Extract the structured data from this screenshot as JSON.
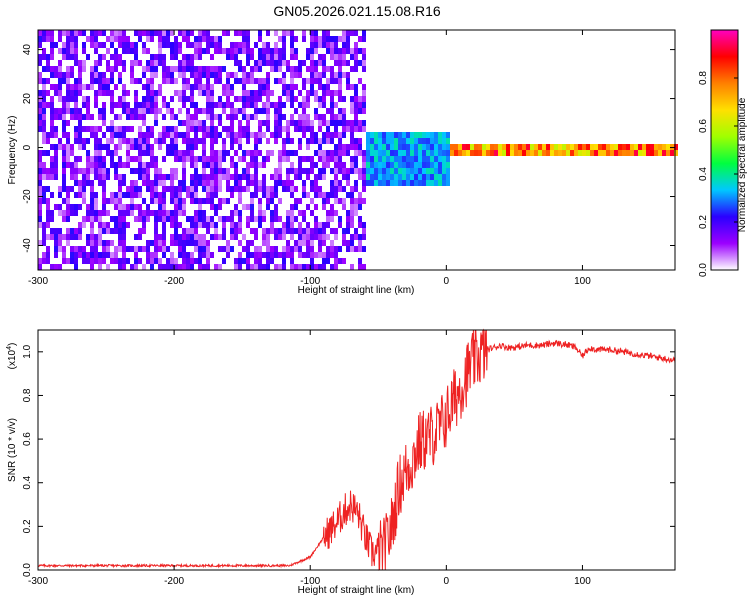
{
  "title": "GN05.2026.021.15.08.R16",
  "chart_data": [
    {
      "type": "heatmap",
      "title": "",
      "xlabel": "Height of straight line (km)",
      "ylabel": "Frequency (Hz)",
      "xlim": [
        -300,
        168
      ],
      "ylim": [
        -50,
        48
      ],
      "xticks": [
        -300,
        -200,
        -100,
        0,
        100
      ],
      "xtick_labels": [
        "-300",
        "-200",
        "-100",
        "0",
        "100"
      ],
      "yticks": [
        -40,
        -20,
        0,
        20,
        40
      ],
      "ytick_labels": [
        "-40",
        "-20",
        "0",
        "20",
        "40"
      ],
      "grid": false,
      "colorbar": {
        "label": "Normalized spectral amplitude",
        "range": [
          0,
          1
        ],
        "ticks": [
          0.0,
          0.2,
          0.4,
          0.6,
          0.8
        ],
        "tick_labels": [
          "0.0",
          "0.2",
          "0.4",
          "0.6",
          "0.8"
        ],
        "colors": [
          "#ffffff",
          "#9b00ff",
          "#2a00ff",
          "#00c8ff",
          "#00ff40",
          "#a0ff00",
          "#ffe000",
          "#ff8000",
          "#ff0000",
          "#ff00c0"
        ]
      },
      "regions": [
        {
          "x_range": [
            -300,
            -60
          ],
          "y_range": [
            -50,
            48
          ],
          "amplitude": 0.12
        },
        {
          "x_range": [
            -60,
            0
          ],
          "y_range": [
            -15,
            8
          ],
          "amplitude": 0.35
        },
        {
          "x_range": [
            0,
            168
          ],
          "y_range": [
            -1.5,
            1.5
          ],
          "amplitude": 0.85
        }
      ]
    },
    {
      "type": "line",
      "title": "",
      "xlabel": "Height of straight line (km)",
      "ylabel": "SNR (10 * v/v)",
      "y_multiplier_label": "(x10",
      "y_multiplier_exp": "4",
      "y_multiplier_close": ")",
      "xlim": [
        -300,
        168
      ],
      "ylim": [
        0,
        1.1
      ],
      "xticks": [
        -300,
        -200,
        -100,
        0,
        100
      ],
      "xtick_labels": [
        "-300",
        "-200",
        "-100",
        "0",
        "100"
      ],
      "yticks": [
        0,
        0.2,
        0.4,
        0.6,
        0.8,
        1.0
      ],
      "ytick_labels": [
        "0.0",
        "0.2",
        "0.4",
        "0.6",
        "0.8",
        "1.0"
      ],
      "grid": false,
      "series": [
        {
          "color": "#ee2222",
          "x": [
            -300,
            -250,
            -200,
            -150,
            -115,
            -100,
            -90,
            -80,
            -75,
            -70,
            -65,
            -60,
            -55,
            -50,
            -45,
            -40,
            -35,
            -30,
            -25,
            -20,
            -15,
            -10,
            -5,
            0,
            5,
            10,
            15,
            20,
            25,
            30,
            35,
            40,
            45,
            50,
            60,
            70,
            80,
            90,
            95,
            100,
            105,
            110,
            120,
            130,
            140,
            150,
            160,
            168
          ],
          "y": [
            0.02,
            0.02,
            0.02,
            0.02,
            0.02,
            0.06,
            0.15,
            0.22,
            0.27,
            0.3,
            0.26,
            0.16,
            0.08,
            0.08,
            0.1,
            0.2,
            0.38,
            0.45,
            0.5,
            0.58,
            0.6,
            0.62,
            0.65,
            0.7,
            0.77,
            0.83,
            0.9,
            0.96,
            0.99,
            1.01,
            1.02,
            1.03,
            1.02,
            1.02,
            1.03,
            1.03,
            1.04,
            1.03,
            1.02,
            0.98,
            1.02,
            1.01,
            1.01,
            1.0,
            0.99,
            0.98,
            0.97,
            0.96
          ]
        }
      ]
    }
  ]
}
